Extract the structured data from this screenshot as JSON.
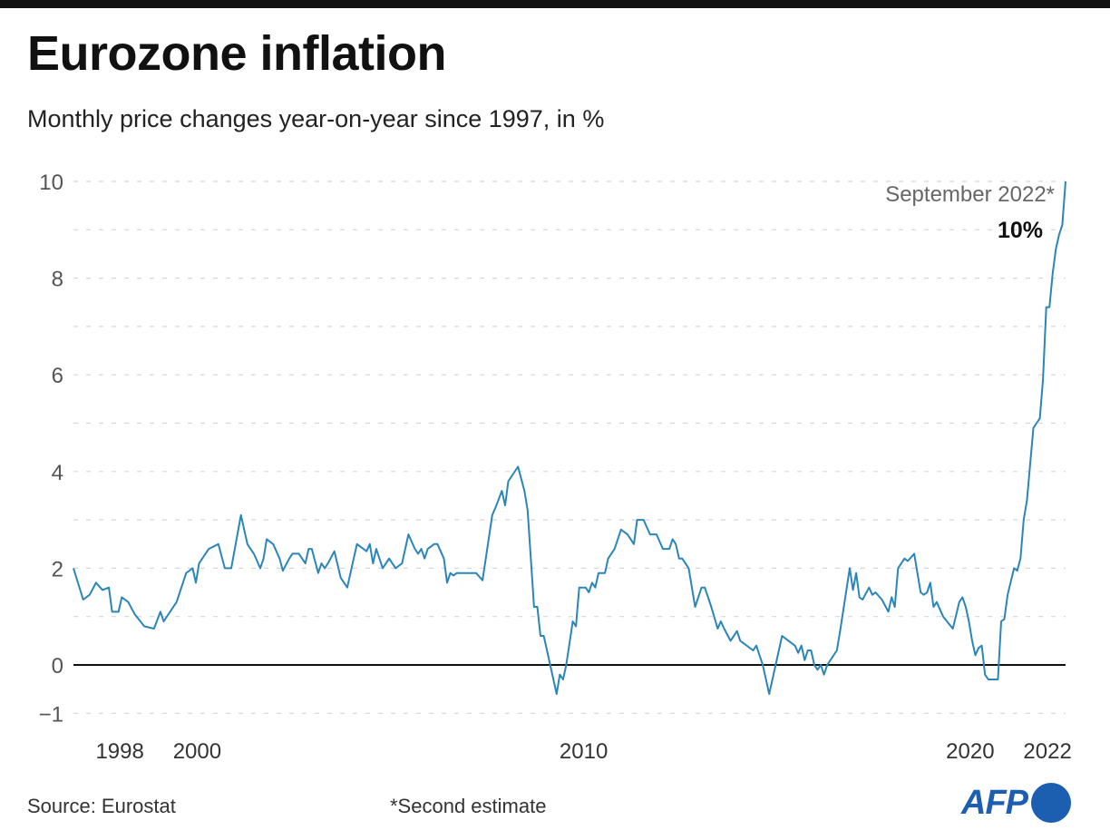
{
  "header": {
    "title": "Eurozone inflation",
    "subtitle": "Monthly price changes year-on-year since 1997, in %"
  },
  "footer": {
    "source": "Source: Eurostat",
    "note": "*Second estimate",
    "logo": "AFP"
  },
  "colors": {
    "line": "#2a86b8",
    "zero_line": "#111111",
    "grid": "#d6d6d6",
    "logo": "#1c5eb0"
  },
  "chart_data": {
    "type": "line",
    "title": "Eurozone inflation",
    "subtitle": "Monthly price changes year-on-year since 1997, in %",
    "xlabel": "",
    "ylabel": "",
    "ylim": [
      -1,
      10
    ],
    "xlim": [
      "1997-01",
      "2022-09"
    ],
    "yticks": [
      10,
      8,
      6,
      4,
      2,
      0,
      -1
    ],
    "ytick_labels": [
      "10",
      "8",
      "6",
      "4",
      "2",
      "0",
      "−1"
    ],
    "xticks": [
      1998,
      2000,
      2010,
      2020,
      2022
    ],
    "xtick_labels": [
      "1998",
      "2000",
      "2010",
      "2020",
      "2022"
    ],
    "grid": "horizontal dashed, every 1 unit",
    "annotation": {
      "label": "September 2022*",
      "value_label": "10%"
    },
    "series": [
      {
        "points": [
          [
            "1997-01",
            2.0
          ],
          [
            "1997-04",
            1.35
          ],
          [
            "1997-06",
            1.45
          ],
          [
            "1997-08",
            1.7
          ],
          [
            "1997-10",
            1.55
          ],
          [
            "1997-12",
            1.6
          ],
          [
            "1998-01",
            1.1
          ],
          [
            "1998-03",
            1.1
          ],
          [
            "1998-04",
            1.4
          ],
          [
            "1998-06",
            1.3
          ],
          [
            "1998-08",
            1.05
          ],
          [
            "1998-11",
            0.8
          ],
          [
            "1999-02",
            0.75
          ],
          [
            "1999-04",
            1.1
          ],
          [
            "1999-05",
            0.9
          ],
          [
            "1999-09",
            1.3
          ],
          [
            "1999-12",
            1.9
          ],
          [
            "2000-02",
            2.0
          ],
          [
            "2000-03",
            1.7
          ],
          [
            "2000-04",
            2.1
          ],
          [
            "2000-07",
            2.4
          ],
          [
            "2000-10",
            2.5
          ],
          [
            "2000-12",
            2.0
          ],
          [
            "2001-02",
            2.0
          ],
          [
            "2001-05",
            3.1
          ],
          [
            "2001-07",
            2.5
          ],
          [
            "2001-09",
            2.3
          ],
          [
            "2001-11",
            2.0
          ],
          [
            "2001-12",
            2.2
          ],
          [
            "2002-01",
            2.6
          ],
          [
            "2002-03",
            2.5
          ],
          [
            "2002-05",
            2.2
          ],
          [
            "2002-06",
            1.95
          ],
          [
            "2002-08",
            2.2
          ],
          [
            "2002-09",
            2.3
          ],
          [
            "2002-11",
            2.3
          ],
          [
            "2003-01",
            2.1
          ],
          [
            "2003-02",
            2.4
          ],
          [
            "2003-03",
            2.4
          ],
          [
            "2003-05",
            1.9
          ],
          [
            "2003-06",
            2.1
          ],
          [
            "2003-07",
            2.0
          ],
          [
            "2003-08",
            2.1
          ],
          [
            "2003-10",
            2.35
          ],
          [
            "2003-12",
            1.8
          ],
          [
            "2004-02",
            1.6
          ],
          [
            "2004-05",
            2.5
          ],
          [
            "2004-07",
            2.4
          ],
          [
            "2004-08",
            2.35
          ],
          [
            "2004-09",
            2.5
          ],
          [
            "2004-10",
            2.1
          ],
          [
            "2004-11",
            2.4
          ],
          [
            "2004-12",
            2.2
          ],
          [
            "2005-01",
            2.0
          ],
          [
            "2005-03",
            2.2
          ],
          [
            "2005-05",
            2.0
          ],
          [
            "2005-07",
            2.1
          ],
          [
            "2005-09",
            2.7
          ],
          [
            "2005-11",
            2.4
          ],
          [
            "2005-12",
            2.3
          ],
          [
            "2006-01",
            2.4
          ],
          [
            "2006-02",
            2.2
          ],
          [
            "2006-03",
            2.4
          ],
          [
            "2006-05",
            2.5
          ],
          [
            "2006-06",
            2.5
          ],
          [
            "2006-08",
            2.2
          ],
          [
            "2006-09",
            1.7
          ],
          [
            "2006-10",
            1.9
          ],
          [
            "2006-11",
            1.85
          ],
          [
            "2006-12",
            1.9
          ],
          [
            "2007-03",
            1.9
          ],
          [
            "2007-06",
            1.9
          ],
          [
            "2007-08",
            1.75
          ],
          [
            "2007-11",
            3.1
          ],
          [
            "2007-12",
            3.25
          ],
          [
            "2008-02",
            3.6
          ],
          [
            "2008-03",
            3.3
          ],
          [
            "2008-04",
            3.8
          ],
          [
            "2008-07",
            4.1
          ],
          [
            "2008-09",
            3.6
          ],
          [
            "2008-10",
            3.2
          ],
          [
            "2008-12",
            1.2
          ],
          [
            "2009-01",
            1.2
          ],
          [
            "2009-02",
            0.6
          ],
          [
            "2009-03",
            0.6
          ],
          [
            "2009-05",
            0.0
          ],
          [
            "2009-07",
            -0.6
          ],
          [
            "2009-08",
            -0.2
          ],
          [
            "2009-09",
            -0.3
          ],
          [
            "2009-10",
            0.0
          ],
          [
            "2009-12",
            0.9
          ],
          [
            "2010-01",
            0.8
          ],
          [
            "2010-02",
            1.6
          ],
          [
            "2010-04",
            1.6
          ],
          [
            "2010-05",
            1.5
          ],
          [
            "2010-06",
            1.7
          ],
          [
            "2010-07",
            1.6
          ],
          [
            "2010-08",
            1.9
          ],
          [
            "2010-10",
            1.9
          ],
          [
            "2010-11",
            2.2
          ],
          [
            "2011-01",
            2.4
          ],
          [
            "2011-03",
            2.8
          ],
          [
            "2011-05",
            2.7
          ],
          [
            "2011-07",
            2.5
          ],
          [
            "2011-08",
            3.0
          ],
          [
            "2011-10",
            3.0
          ],
          [
            "2011-12",
            2.7
          ],
          [
            "2012-02",
            2.7
          ],
          [
            "2012-04",
            2.4
          ],
          [
            "2012-06",
            2.4
          ],
          [
            "2012-07",
            2.6
          ],
          [
            "2012-08",
            2.5
          ],
          [
            "2012-09",
            2.2
          ],
          [
            "2012-10",
            2.2
          ],
          [
            "2012-12",
            2.0
          ],
          [
            "2013-02",
            1.2
          ],
          [
            "2013-04",
            1.6
          ],
          [
            "2013-05",
            1.6
          ],
          [
            "2013-07",
            1.2
          ],
          [
            "2013-09",
            0.75
          ],
          [
            "2013-10",
            0.9
          ],
          [
            "2013-11",
            0.75
          ],
          [
            "2014-01",
            0.5
          ],
          [
            "2014-03",
            0.7
          ],
          [
            "2014-04",
            0.5
          ],
          [
            "2014-06",
            0.4
          ],
          [
            "2014-08",
            0.3
          ],
          [
            "2014-09",
            0.4
          ],
          [
            "2014-11",
            0.0
          ],
          [
            "2015-01",
            -0.6
          ],
          [
            "2015-03",
            0.0
          ],
          [
            "2015-05",
            0.6
          ],
          [
            "2015-07",
            0.5
          ],
          [
            "2015-09",
            0.4
          ],
          [
            "2015-10",
            0.25
          ],
          [
            "2015-11",
            0.4
          ],
          [
            "2015-12",
            0.1
          ],
          [
            "2016-01",
            0.3
          ],
          [
            "2016-02",
            0.3
          ],
          [
            "2016-03",
            0.0
          ],
          [
            "2016-04",
            -0.1
          ],
          [
            "2016-05",
            0.0
          ],
          [
            "2016-06",
            -0.2
          ],
          [
            "2016-07",
            0.0
          ],
          [
            "2016-09",
            0.2
          ],
          [
            "2016-10",
            0.3
          ],
          [
            "2016-11",
            0.7
          ],
          [
            "2017-02",
            2.0
          ],
          [
            "2017-03",
            1.55
          ],
          [
            "2017-04",
            1.9
          ],
          [
            "2017-05",
            1.4
          ],
          [
            "2017-06",
            1.35
          ],
          [
            "2017-08",
            1.6
          ],
          [
            "2017-09",
            1.45
          ],
          [
            "2017-10",
            1.5
          ],
          [
            "2017-12",
            1.35
          ],
          [
            "2018-02",
            1.1
          ],
          [
            "2018-03",
            1.4
          ],
          [
            "2018-04",
            1.2
          ],
          [
            "2018-05",
            2.0
          ],
          [
            "2018-07",
            2.2
          ],
          [
            "2018-08",
            2.15
          ],
          [
            "2018-10",
            2.3
          ],
          [
            "2018-12",
            1.5
          ],
          [
            "2019-01",
            1.45
          ],
          [
            "2019-02",
            1.5
          ],
          [
            "2019-03",
            1.7
          ],
          [
            "2019-04",
            1.2
          ],
          [
            "2019-05",
            1.3
          ],
          [
            "2019-07",
            1.0
          ],
          [
            "2019-10",
            0.75
          ],
          [
            "2019-12",
            1.3
          ],
          [
            "2020-01",
            1.4
          ],
          [
            "2020-02",
            1.2
          ],
          [
            "2020-03",
            0.9
          ],
          [
            "2020-04",
            0.5
          ],
          [
            "2020-05",
            0.2
          ],
          [
            "2020-06",
            0.35
          ],
          [
            "2020-07",
            0.4
          ],
          [
            "2020-08",
            -0.2
          ],
          [
            "2020-09",
            -0.3
          ],
          [
            "2020-12",
            -0.3
          ],
          [
            "2021-01",
            0.9
          ],
          [
            "2021-02",
            0.95
          ],
          [
            "2021-03",
            1.45
          ],
          [
            "2021-05",
            2.0
          ],
          [
            "2021-06",
            1.95
          ],
          [
            "2021-07",
            2.2
          ],
          [
            "2021-08",
            3.0
          ],
          [
            "2021-09",
            3.4
          ],
          [
            "2021-11",
            4.9
          ],
          [
            "2021-12",
            5.0
          ],
          [
            "2022-01",
            5.1
          ],
          [
            "2022-02",
            5.9
          ],
          [
            "2022-03",
            7.4
          ],
          [
            "2022-04",
            7.4
          ],
          [
            "2022-05",
            8.1
          ],
          [
            "2022-06",
            8.6
          ],
          [
            "2022-07",
            8.9
          ],
          [
            "2022-08",
            9.1
          ],
          [
            "2022-09",
            10.0
          ]
        ]
      }
    ]
  }
}
